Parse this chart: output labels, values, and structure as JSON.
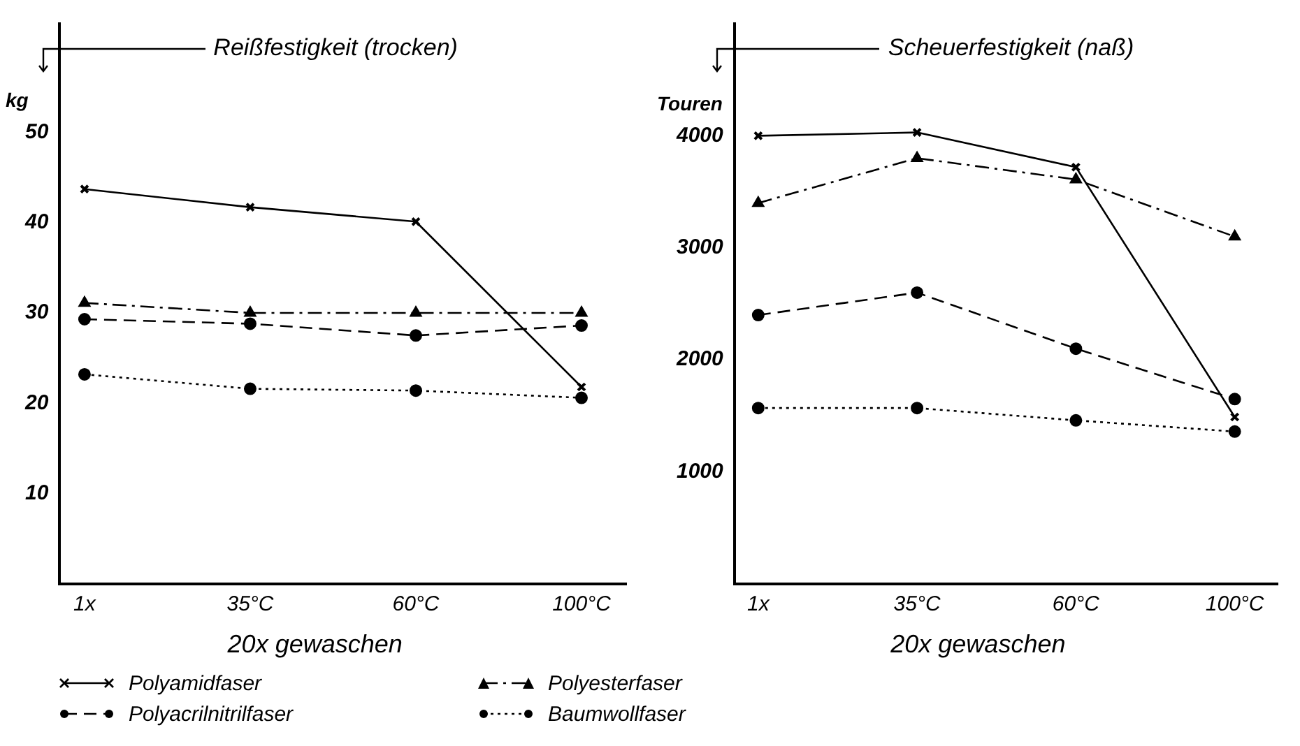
{
  "chart_data": [
    {
      "type": "line",
      "title": "Reißfestigkeit (trocken)",
      "ylabel": "kg",
      "xlabel": "20x gewaschen",
      "categories": [
        "1x",
        "35°C",
        "60°C",
        "100°C"
      ],
      "ylim": [
        0,
        62
      ],
      "yticks": [
        10,
        20,
        30,
        40,
        50
      ],
      "grid": false,
      "legend": "bottom",
      "series": [
        {
          "name": "Polyamidfaser",
          "color": "#000000",
          "marker": "cross",
          "line_style": "solid",
          "values": [
            43.7,
            41.7,
            40.1,
            21.8
          ]
        },
        {
          "name": "Polyacrilnitrilfaser",
          "color": "#000000",
          "marker": "circle",
          "line_style": "dashed",
          "values": [
            29.3,
            28.8,
            27.5,
            28.6
          ]
        },
        {
          "name": "Polyesterfaser",
          "color": "#000000",
          "marker": "triangle",
          "line_style": "dashdot",
          "values": [
            31.1,
            30,
            30,
            30
          ]
        },
        {
          "name": "Baumwollfaser",
          "color": "#000000",
          "marker": "circle",
          "line_style": "dotted",
          "values": [
            23.2,
            21.6,
            21.4,
            20.6
          ]
        }
      ]
    },
    {
      "type": "line",
      "title": "Scheuerfestigkeit (naß)",
      "ylabel": "Touren",
      "xlabel": "20x gewaschen",
      "categories": [
        "1x",
        "35°C",
        "60°C",
        "100°C"
      ],
      "ylim": [
        0,
        5000
      ],
      "yticks": [
        1000,
        2000,
        3000,
        4000
      ],
      "grid": false,
      "series": [
        {
          "color": "#000000",
          "marker": "cross",
          "line_style": "solid",
          "values": [
            4000,
            4030,
            3720,
            1490
          ]
        },
        {
          "color": "#000000",
          "marker": "circle",
          "line_style": "dashed",
          "values": [
            2400,
            2600,
            2100,
            1650
          ]
        },
        {
          "color": "#000000",
          "marker": "triangle",
          "line_style": "dashdot",
          "values": [
            3400,
            3800,
            3610,
            3100
          ]
        },
        {
          "color": "#000000",
          "marker": "circle",
          "line_style": "dotted",
          "values": [
            1570,
            1570,
            1460,
            1360
          ]
        }
      ]
    }
  ]
}
